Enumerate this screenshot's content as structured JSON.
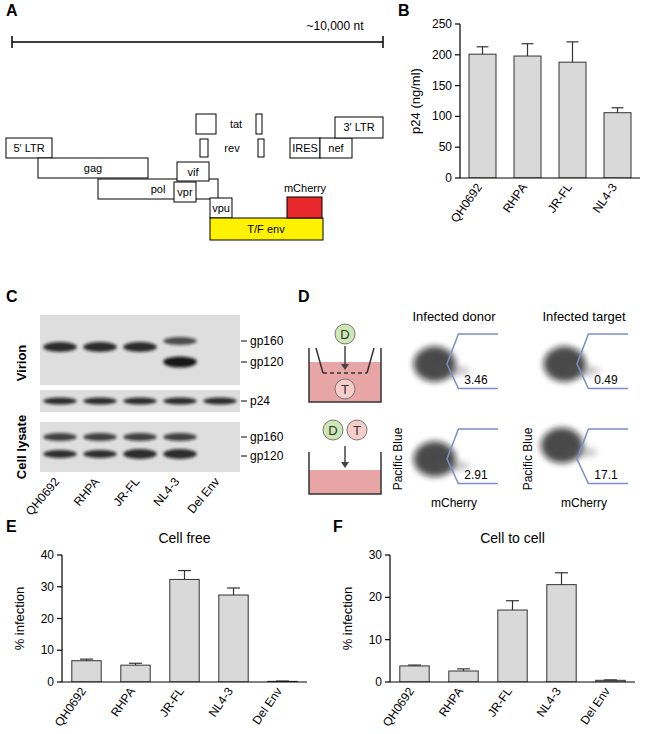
{
  "panel_labels": [
    "A",
    "B",
    "C",
    "D",
    "E",
    "F"
  ],
  "genome_map": {
    "scale_label": "~10,000 nt",
    "genes": [
      "5′ LTR",
      "gag",
      "pol",
      "vif",
      "vpr",
      "tat",
      "rev",
      "vpu",
      "T/F env",
      "mCherry",
      "IRES",
      "nef",
      "3′ LTR"
    ]
  },
  "blot": {
    "rows": [
      "Virion",
      "Cell lysate"
    ],
    "band_labels": [
      "gp160",
      "gp120",
      "p24"
    ],
    "lanes": [
      "QH0692",
      "RHPA",
      "JR-FL",
      "NL4-3",
      "Del Env"
    ]
  },
  "flow": {
    "columns": [
      "Infected donor",
      "Infected target"
    ],
    "x_label": "mCherry",
    "y_label": "Pacific Blue",
    "donor_label": "D",
    "target_label": "T",
    "gates": [
      [
        3.46,
        0.49
      ],
      [
        2.91,
        17.1
      ]
    ]
  },
  "chart_data": [
    {
      "type": "bar",
      "y_label": "p24 (ng/ml)",
      "categories": [
        "QH0692",
        "RHPA",
        "JR-FL",
        "NL4-3"
      ],
      "values": [
        201,
        198,
        188,
        106
      ],
      "errors": [
        12,
        20,
        33,
        8
      ],
      "color": "#d9d9d9",
      "ylim": [
        0,
        250
      ],
      "yticks": [
        0,
        50,
        100,
        150,
        200,
        250
      ]
    },
    {
      "type": "bar",
      "title": "Cell free",
      "y_label": "% infection",
      "categories": [
        "QH0692",
        "RHPA",
        "JR-FL",
        "NL4-3",
        "Del Env"
      ],
      "values": [
        6.7,
        5.3,
        32.3,
        27.4,
        0.2
      ],
      "errors": [
        0.5,
        0.6,
        2.8,
        2.2,
        0.1
      ],
      "color": "#d9d9d9",
      "ylim": [
        0,
        40
      ],
      "yticks": [
        0,
        10,
        20,
        30,
        40
      ]
    },
    {
      "type": "bar",
      "title": "Cell to cell",
      "y_label": "% infection",
      "categories": [
        "QH0692",
        "RHPA",
        "JR-FL",
        "NL4-3",
        "Del Env"
      ],
      "values": [
        3.8,
        2.6,
        17,
        23,
        0.4
      ],
      "errors": [
        0.2,
        0.5,
        2.2,
        2.8,
        0.1
      ],
      "color": "#d9d9d9",
      "ylim": [
        0,
        30
      ],
      "yticks": [
        0,
        10,
        20,
        30
      ]
    }
  ]
}
